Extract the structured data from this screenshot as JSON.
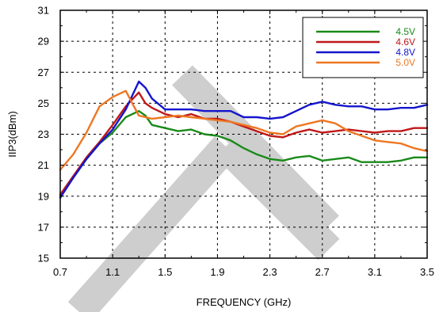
{
  "chart_data": {
    "type": "line",
    "xlabel": "FREQUENCY (GHz)",
    "ylabel": "IIP3(dBm)",
    "xlim": [
      0.7,
      3.5
    ],
    "ylim": [
      15,
      31
    ],
    "x_ticks": [
      "0.7",
      "1.1",
      "1.5",
      "1.9",
      "2.3",
      "2.7",
      "3.1",
      "3.5"
    ],
    "y_ticks": [
      "15",
      "17",
      "19",
      "21",
      "23",
      "25",
      "27",
      "29",
      "31"
    ],
    "x_tick_values": [
      0.7,
      1.1,
      1.5,
      1.9,
      2.3,
      2.7,
      3.1,
      3.5
    ],
    "y_tick_values": [
      15,
      17,
      19,
      21,
      23,
      25,
      27,
      29,
      31
    ],
    "x_minor_ticks": [
      0.9,
      1.3,
      1.7,
      2.1,
      2.5,
      2.9,
      3.3
    ],
    "y_minor_ticks": [
      16,
      18,
      20,
      22,
      24,
      26,
      28,
      30
    ],
    "grid": "dashed",
    "legend_position": "top-right",
    "series": [
      {
        "name": "4.5V",
        "color": "#1a8a1a",
        "points": [
          [
            0.7,
            19.0
          ],
          [
            0.8,
            20.2
          ],
          [
            0.9,
            21.4
          ],
          [
            1.0,
            22.4
          ],
          [
            1.1,
            23.1
          ],
          [
            1.2,
            24.1
          ],
          [
            1.3,
            24.5
          ],
          [
            1.35,
            24.2
          ],
          [
            1.4,
            23.6
          ],
          [
            1.5,
            23.4
          ],
          [
            1.6,
            23.2
          ],
          [
            1.7,
            23.3
          ],
          [
            1.8,
            23.0
          ],
          [
            1.9,
            22.9
          ],
          [
            2.0,
            22.6
          ],
          [
            2.1,
            22.1
          ],
          [
            2.2,
            21.7
          ],
          [
            2.3,
            21.4
          ],
          [
            2.4,
            21.3
          ],
          [
            2.5,
            21.5
          ],
          [
            2.6,
            21.6
          ],
          [
            2.7,
            21.3
          ],
          [
            2.8,
            21.4
          ],
          [
            2.9,
            21.5
          ],
          [
            3.0,
            21.2
          ],
          [
            3.1,
            21.2
          ],
          [
            3.2,
            21.2
          ],
          [
            3.3,
            21.3
          ],
          [
            3.4,
            21.5
          ],
          [
            3.5,
            21.5
          ]
        ]
      },
      {
        "name": "4.6V",
        "color": "#c01818",
        "points": [
          [
            0.7,
            19.1
          ],
          [
            0.8,
            20.3
          ],
          [
            0.9,
            21.5
          ],
          [
            1.0,
            22.5
          ],
          [
            1.1,
            23.6
          ],
          [
            1.2,
            24.8
          ],
          [
            1.3,
            25.7
          ],
          [
            1.35,
            25.0
          ],
          [
            1.4,
            24.7
          ],
          [
            1.5,
            24.3
          ],
          [
            1.6,
            24.1
          ],
          [
            1.7,
            24.3
          ],
          [
            1.8,
            24.0
          ],
          [
            1.9,
            24.0
          ],
          [
            2.0,
            23.8
          ],
          [
            2.1,
            23.5
          ],
          [
            2.2,
            23.2
          ],
          [
            2.3,
            22.9
          ],
          [
            2.4,
            22.8
          ],
          [
            2.5,
            23.1
          ],
          [
            2.6,
            23.3
          ],
          [
            2.7,
            23.1
          ],
          [
            2.8,
            23.2
          ],
          [
            2.9,
            23.3
          ],
          [
            3.0,
            23.2
          ],
          [
            3.1,
            23.1
          ],
          [
            3.2,
            23.2
          ],
          [
            3.3,
            23.2
          ],
          [
            3.4,
            23.4
          ],
          [
            3.5,
            23.4
          ]
        ]
      },
      {
        "name": "4.8V",
        "color": "#1515cc",
        "points": [
          [
            0.7,
            18.9
          ],
          [
            0.8,
            20.2
          ],
          [
            0.9,
            21.4
          ],
          [
            1.0,
            22.4
          ],
          [
            1.1,
            23.3
          ],
          [
            1.2,
            24.6
          ],
          [
            1.3,
            26.4
          ],
          [
            1.35,
            26.0
          ],
          [
            1.4,
            25.3
          ],
          [
            1.5,
            24.6
          ],
          [
            1.6,
            24.6
          ],
          [
            1.7,
            24.6
          ],
          [
            1.8,
            24.5
          ],
          [
            1.9,
            24.5
          ],
          [
            2.0,
            24.5
          ],
          [
            2.1,
            24.1
          ],
          [
            2.2,
            24.1
          ],
          [
            2.3,
            24.0
          ],
          [
            2.4,
            24.1
          ],
          [
            2.5,
            24.5
          ],
          [
            2.6,
            24.9
          ],
          [
            2.7,
            25.1
          ],
          [
            2.8,
            24.9
          ],
          [
            2.9,
            24.8
          ],
          [
            3.0,
            24.8
          ],
          [
            3.1,
            24.6
          ],
          [
            3.2,
            24.6
          ],
          [
            3.3,
            24.7
          ],
          [
            3.4,
            24.7
          ],
          [
            3.5,
            24.9
          ]
        ]
      },
      {
        "name": "5.0V",
        "color": "#ee7722",
        "points": [
          [
            0.7,
            20.7
          ],
          [
            0.8,
            21.7
          ],
          [
            0.9,
            23.1
          ],
          [
            1.0,
            24.8
          ],
          [
            1.1,
            25.4
          ],
          [
            1.2,
            25.8
          ],
          [
            1.25,
            25.0
          ],
          [
            1.3,
            24.2
          ],
          [
            1.4,
            24.0
          ],
          [
            1.5,
            24.1
          ],
          [
            1.6,
            24.2
          ],
          [
            1.7,
            24.1
          ],
          [
            1.8,
            24.0
          ],
          [
            1.9,
            23.9
          ],
          [
            2.0,
            23.8
          ],
          [
            2.1,
            23.6
          ],
          [
            2.2,
            23.4
          ],
          [
            2.3,
            23.1
          ],
          [
            2.4,
            23.0
          ],
          [
            2.5,
            23.5
          ],
          [
            2.6,
            23.7
          ],
          [
            2.7,
            23.9
          ],
          [
            2.8,
            23.7
          ],
          [
            2.9,
            23.2
          ],
          [
            3.0,
            22.9
          ],
          [
            3.1,
            22.6
          ],
          [
            3.2,
            22.5
          ],
          [
            3.3,
            22.4
          ],
          [
            3.4,
            22.1
          ],
          [
            3.5,
            21.9
          ]
        ]
      }
    ]
  }
}
